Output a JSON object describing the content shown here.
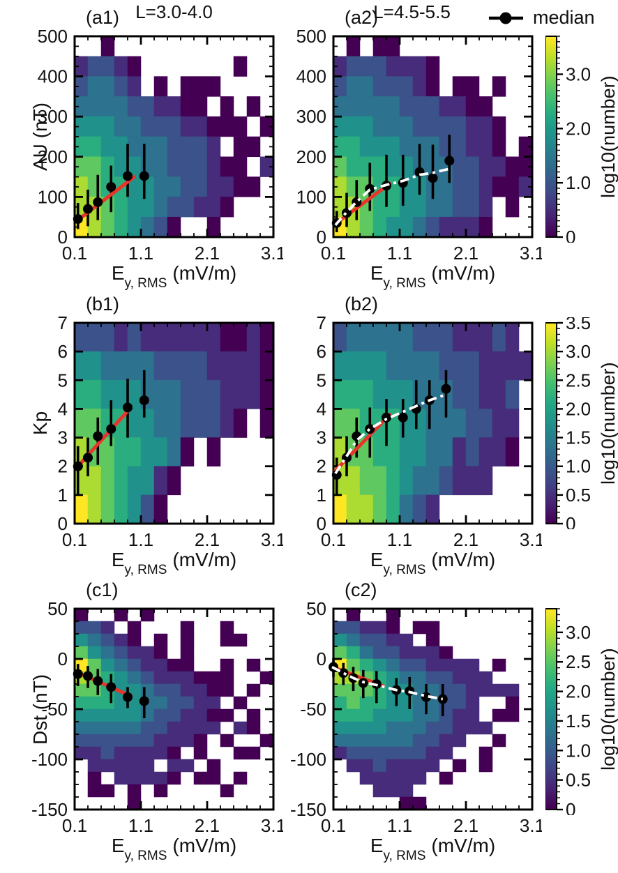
{
  "chart_data": {
    "type": "heatmap",
    "description": "2D occurrence histograms (log10 number) of geomagnetic indices vs wave electric field amplitude, with median curves",
    "figure_titles": {
      "left": "L=3.0-4.0",
      "right": "L=4.5-5.5"
    },
    "legend": {
      "median_label": "median"
    },
    "xlabel": {
      "main": "E",
      "sub": "y, RMS",
      "unit": "(mV/m)"
    },
    "x_axis": {
      "range": [
        0.1,
        3.1
      ],
      "ticks": [
        0.1,
        1.1,
        2.1,
        3.1
      ],
      "tick_labels": [
        "0.1",
        "1.1",
        "2.1",
        "3.1"
      ],
      "minor_step": 0.2
    },
    "grid_encoding": "each grid char 1-9 is approximate log10(number) from ~0 (darkest purple) to ~3.6 (yellow); '.' = no data (white)",
    "colors": {
      "fit_line": "#e8352b",
      "extended_fit": "#ffffff",
      "median_marker": "#000000"
    },
    "panels": [
      {
        "id": "a1",
        "label": "(a1)",
        "row": 0,
        "col": "left",
        "ylabel": "AU (nT)",
        "y_range": [
          0,
          500
        ],
        "yticks": [
          0,
          100,
          200,
          300,
          400,
          500
        ],
        "ytick_labels": [
          "0",
          "100",
          "200",
          "300",
          "400",
          "500"
        ],
        "y_minor_step": 25,
        "grid": [
          "..1............",
          "23321.......1..",
          "34432.1.111....",
          "4444332211.1.1.",
          "5554433322111.1",
          "66554443332.11.",
          "7765544333211.2",
          "87665544332211.",
          "887655433221...",
          "98765431..1...."
        ],
        "median": {
          "x": [
            0.15,
            0.3,
            0.45,
            0.65,
            0.9,
            1.15
          ],
          "y": [
            45,
            70,
            87,
            125,
            152,
            152
          ],
          "ylo": [
            20,
            27,
            42,
            62,
            100,
            95
          ],
          "yhi": [
            85,
            118,
            155,
            178,
            232,
            232
          ]
        },
        "fit_line": {
          "x": [
            0.13,
            1.0
          ],
          "y": [
            40,
            150
          ]
        },
        "extended_fit": null
      },
      {
        "id": "a2",
        "label": "(a2)",
        "row": 0,
        "col": "right",
        "ylabel": null,
        "y_range": [
          0,
          500
        ],
        "yticks": [
          0,
          100,
          200,
          300,
          400,
          500
        ],
        "ytick_labels": [
          "0",
          "100",
          "200",
          "300",
          "400",
          "500"
        ],
        "y_minor_step": 25,
        "grid": [
          ".1.11..........",
          "23332221.......",
          "34433321.11.1..",
          "444443332211...",
          "5554443333221..",
          "6655544433221.1",
          "766655444332211",
          "877665544332112",
          "887665544332.1.",
          "987655432221..."
        ],
        "median": {
          "x": [
            0.15,
            0.3,
            0.45,
            0.65,
            0.9,
            1.15,
            1.4,
            1.6,
            1.85
          ],
          "y": [
            35,
            60,
            87,
            120,
            128,
            135,
            162,
            147,
            190
          ],
          "ylo": [
            12,
            25,
            42,
            65,
            75,
            78,
            105,
            95,
            135
          ],
          "yhi": [
            65,
            110,
            142,
            185,
            205,
            205,
            232,
            230,
            255
          ]
        },
        "fit_line": {
          "x": [
            0.13,
            0.95
          ],
          "y": [
            33,
            133
          ]
        },
        "extended_fit": {
          "x": [
            0.13,
            0.3,
            0.45,
            0.65,
            0.9,
            1.15,
            1.4,
            1.6,
            1.85
          ],
          "y": [
            30,
            62,
            88,
            118,
            130,
            140,
            155,
            160,
            170
          ]
        }
      },
      {
        "id": "b1",
        "label": "(b1)",
        "row": 1,
        "col": "left",
        "ylabel": "Kp",
        "y_range": [
          0,
          7
        ],
        "yticks": [
          0,
          1,
          2,
          3,
          4,
          5,
          6,
          7
        ],
        "ytick_labels": [
          "0",
          "1",
          "2",
          "3",
          "4",
          "5",
          "6",
          "7"
        ],
        "y_minor_step": null,
        "grid": [
          "333232222221121",
          "554444333322221",
          "665554443332221",
          "7766554433321.1",
          "877665541.1....",
          "88765521.......",
          "9876531........"
        ],
        "median": {
          "x": [
            0.15,
            0.3,
            0.45,
            0.65,
            0.9,
            1.15
          ],
          "y": [
            2.0,
            2.3,
            3.05,
            3.3,
            4.05,
            4.3
          ],
          "ylo": [
            1.0,
            1.65,
            2.05,
            2.7,
            3.0,
            3.7
          ],
          "yhi": [
            2.7,
            3.0,
            3.7,
            4.3,
            5.05,
            5.35
          ]
        },
        "fit_line": {
          "x": [
            0.13,
            0.93
          ],
          "y": [
            1.95,
            4.0
          ]
        },
        "extended_fit": null
      },
      {
        "id": "b2",
        "label": "(b2)",
        "row": 1,
        "col": "right",
        "ylabel": null,
        "y_range": [
          0,
          7
        ],
        "yticks": [
          0,
          1,
          2,
          3,
          4,
          5,
          6,
          7
        ],
        "ytick_labels": [
          "0",
          "1",
          "2",
          "3",
          "4",
          "5",
          "6",
          "7"
        ],
        "y_minor_step": null,
        "grid": [
          "34444433322232.",
          "555544443332222",
          "66655544433223.",
          "77666554443322.",
          "87766554423221.",
          "887765443222...",
          "98876432......."
        ],
        "median": {
          "x": [
            0.15,
            0.3,
            0.45,
            0.65,
            0.9,
            1.15,
            1.35,
            1.55,
            1.8
          ],
          "y": [
            1.7,
            2.3,
            3.05,
            3.3,
            3.7,
            3.7,
            4.0,
            4.3,
            4.7
          ],
          "ylo": [
            1.0,
            1.65,
            2.3,
            2.3,
            2.7,
            3.0,
            3.3,
            3.3,
            3.7
          ],
          "yhi": [
            2.3,
            3.05,
            3.7,
            4.05,
            4.35,
            4.35,
            5.0,
            5.0,
            5.35
          ]
        },
        "fit_line": {
          "x": [
            0.13,
            0.95
          ],
          "y": [
            1.85,
            3.8
          ]
        },
        "extended_fit": {
          "x": [
            0.13,
            0.3,
            0.45,
            0.65,
            0.9,
            1.15,
            1.35,
            1.55,
            1.8
          ],
          "y": [
            1.75,
            2.35,
            2.9,
            3.3,
            3.65,
            3.9,
            4.1,
            4.3,
            4.5
          ]
        }
      },
      {
        "id": "c1",
        "label": "(c1)",
        "row": 2,
        "col": "left",
        "ylabel": "Dst (nT)",
        "y_range": [
          -150,
          50
        ],
        "yticks": [
          50,
          0,
          -50,
          -100,
          -150
        ],
        "ytick_labels": [
          "50",
          "0",
          "-50",
          "-100",
          "-150"
        ],
        "y_minor_step": 12.5,
        "grid": [
          "1..1.1.........",
          "332.1...1..1...",
          "54321.1.1..11..",
          "7543221.1......",
          "975432211..1.1.",
          "876543222111..1",
          "776554332211.1.",
          "66655443322.1..",
          "555554332211.1.",
          "44444332222.21.",
          "3333332221.1..1",
          "22322221.1..11.",
          ".22222.22.1....",
          ".1.22221.11.1..",
          ".11.1.1....1...",
          "....1.........."
        ],
        "median": {
          "x": [
            0.15,
            0.3,
            0.45,
            0.65,
            0.9,
            1.15
          ],
          "y": [
            -15,
            -17,
            -22,
            -28,
            -38,
            -42
          ],
          "ylo": [
            -27,
            -29,
            -36,
            -44,
            -49,
            -59
          ],
          "yhi": [
            -5,
            -7,
            -10,
            -15,
            -28,
            -28
          ]
        },
        "fit_line": {
          "x": [
            0.13,
            0.95
          ],
          "y": [
            -13,
            -37
          ]
        },
        "extended_fit": null
      },
      {
        "id": "c2",
        "label": "(c2)",
        "row": 2,
        "col": "right",
        "ylabel": null,
        "y_range": [
          -150,
          50
        ],
        "yticks": [
          50,
          0,
          -50,
          -100,
          -150
        ],
        "ytick_labels": [
          "50",
          "0",
          "-50",
          "-100",
          "-150"
        ],
        "y_minor_step": 12.5,
        "grid": [
          ".1..1..........",
          "33221.11.......",
          "543322.1.......",
          "764332221......",
          "97654332222.1..",
          "887654433222...",
          "77765544332222.",
          "67665544332..1.",
          "66655544322.11.",
          "555544433222...",
          "4444443322..1..",
          "233333322..1...",
          ".2232222.1.1...",
          "..22222.1......",
          "...222.........",
          ".....11........"
        ],
        "median": {
          "x": [
            0.1,
            0.25,
            0.4,
            0.55,
            0.75,
            1.05,
            1.25,
            1.5,
            1.75
          ],
          "y": [
            -8,
            -14,
            -19,
            -24,
            -25,
            -31,
            -32,
            -38,
            -40
          ],
          "ylo": [
            -18,
            -26,
            -32,
            -39,
            -44,
            -47,
            -50,
            -55,
            -57
          ],
          "yhi": [
            1,
            -4,
            -8,
            -11,
            -12,
            -19,
            -18,
            -25,
            -25
          ]
        },
        "fit_line": {
          "x": [
            0.08,
            0.85
          ],
          "y": [
            -8,
            -27
          ]
        },
        "extended_fit": {
          "x": [
            0.08,
            0.25,
            0.4,
            0.55,
            0.75,
            1.05,
            1.25,
            1.5,
            1.75
          ],
          "y": [
            -8,
            -14,
            -19,
            -23,
            -26,
            -31,
            -33,
            -37,
            -40
          ]
        }
      }
    ],
    "colorbars": [
      {
        "row": 0,
        "label": "log10(number)",
        "vmin": 0,
        "vmax": 3.7,
        "ticks": [
          0,
          1,
          2,
          3
        ],
        "tick_labels": [
          "0",
          "1.0",
          "2.0",
          "3.0"
        ],
        "minor_step": 0.1
      },
      {
        "row": 1,
        "label": "log10(number)",
        "vmin": 0,
        "vmax": 3.5,
        "ticks": [
          0,
          0.5,
          1,
          1.5,
          2,
          2.5,
          3,
          3.5
        ],
        "tick_labels": [
          "0",
          "0.5",
          "1.0",
          "1.5",
          "2.0",
          "2.5",
          "3.0",
          "3.5"
        ],
        "minor_step": 0.1
      },
      {
        "row": 2,
        "label": "log10(number)",
        "vmin": 0,
        "vmax": 3.4,
        "ticks": [
          0,
          0.5,
          1,
          1.5,
          2,
          2.5,
          3
        ],
        "tick_labels": [
          "0",
          "0.5",
          "1.0",
          "1.5",
          "2.0",
          "2.5",
          "3.0"
        ],
        "minor_step": 0.1
      }
    ]
  }
}
